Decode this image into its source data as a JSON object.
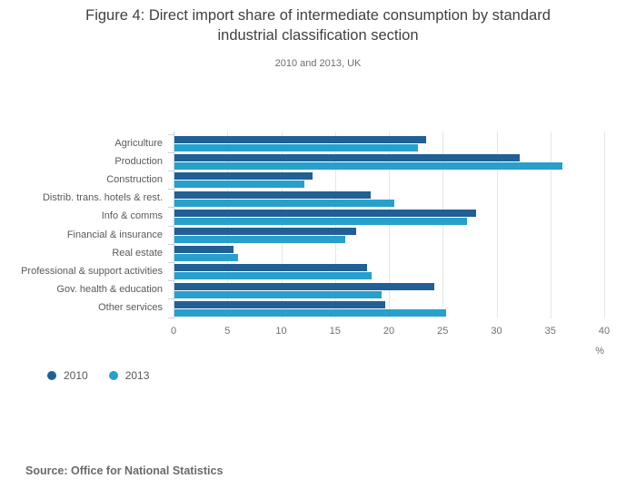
{
  "title": {
    "line1": "Figure 4: Direct import share of intermediate consumption by standard",
    "line2": "industrial classification section"
  },
  "subtitle": "2010 and 2013, UK",
  "source": "Source: Office for National Statistics",
  "legend": [
    {
      "label": "2010",
      "color": "#206095"
    },
    {
      "label": "2013",
      "color": "#27A0CC"
    }
  ],
  "chart_data": {
    "type": "bar",
    "orientation": "horizontal",
    "title": "Figure 4: Direct import share of intermediate consumption by standard industrial classification section",
    "subtitle": "2010 and 2013, UK",
    "categories": [
      "Agriculture",
      "Production",
      "Construction",
      "Distrib. trans. hotels & rest.",
      "Info & comms",
      "Financial & insurance",
      "Real estate",
      "Professional & support activities",
      "Gov. health & education",
      "Other services"
    ],
    "series": [
      {
        "name": "2010",
        "color": "#206095",
        "values": [
          23.4,
          32.1,
          12.8,
          18.2,
          28.0,
          16.9,
          5.5,
          17.9,
          24.1,
          19.6
        ]
      },
      {
        "name": "2013",
        "color": "#27A0CC",
        "values": [
          22.6,
          36.0,
          12.1,
          20.4,
          27.2,
          15.9,
          5.9,
          18.3,
          19.2,
          25.2
        ]
      }
    ],
    "xlabel": "%",
    "xlim": [
      0,
      40
    ],
    "xticks": [
      0,
      5,
      10,
      15,
      20,
      25,
      30,
      35,
      40
    ],
    "grid": true,
    "legend_position": "bottom-left",
    "colors": {
      "gridline": "#e6e6e6",
      "axis": "#c6d4e4"
    }
  }
}
